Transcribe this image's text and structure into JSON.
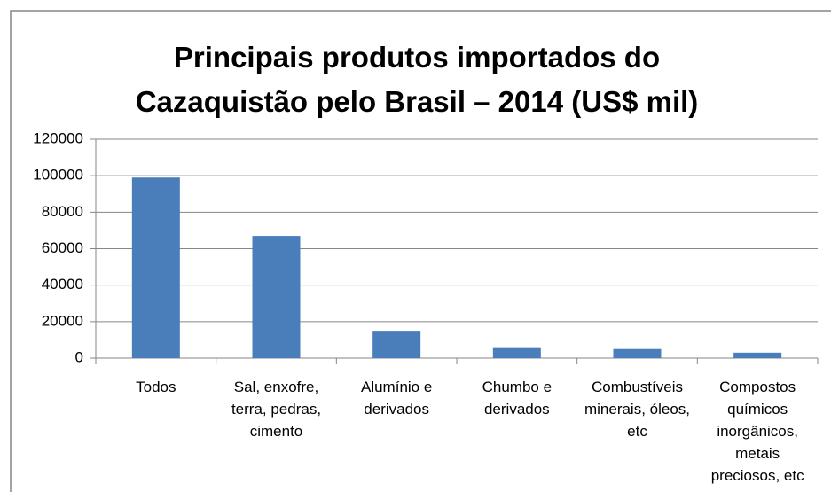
{
  "chart_data": {
    "type": "bar",
    "title": "Principais produtos importados do Cazaquistão pelo Brasil – 2014 (US$ mil)",
    "categories": [
      "Todos",
      "Sal, enxofre, terra, pedras, cimento",
      "Alumínio e derivados",
      "Chumbo e derivados",
      "Combustíveis minerais, óleos, etc",
      "Compostos químicos inorgânicos, metais preciosos, etc"
    ],
    "values": [
      99000,
      67000,
      15000,
      6000,
      5000,
      3000
    ],
    "color": "#4a7ebb",
    "ylim": [
      0,
      120000
    ],
    "yticks": [
      0,
      20000,
      40000,
      60000,
      80000,
      100000,
      120000
    ],
    "grid": true
  }
}
